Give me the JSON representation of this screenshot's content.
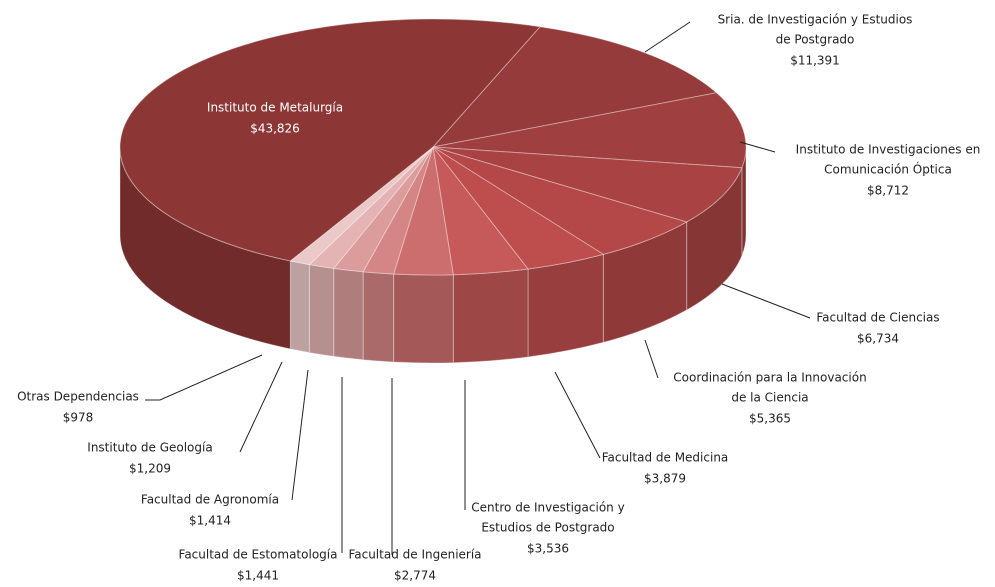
{
  "chart_data": {
    "type": "pie3d",
    "categories": [
      [
        "Sria. de Investigación y Estudios",
        "de Postgrado"
      ],
      [
        "Instituto de Investigaciones en",
        "Comunicación Óptica"
      ],
      [
        "Facultad de Ciencias"
      ],
      [
        "Coordinación para la Innovación",
        "de la Ciencia"
      ],
      [
        "Facultad de Medicina"
      ],
      [
        "Centro de Investigación y",
        "Estudios de Postgrado"
      ],
      [
        "Facultad de Ingeniería"
      ],
      [
        "Facultad de Estomatología"
      ],
      [
        "Facultad de Agronomía"
      ],
      [
        "Instituto de Geología"
      ],
      [
        "Otras Dependencias"
      ],
      [
        "Instituto de Metalurgía"
      ]
    ],
    "values": [
      11391,
      8712,
      6734,
      5365,
      3879,
      3536,
      2774,
      1441,
      1414,
      1209,
      978,
      43826
    ],
    "value_labels": [
      "$11,391",
      "$8,712",
      "$6,734",
      "$5,365",
      "$3,879",
      "$3,536",
      "$2,774",
      "$1,441",
      "$1,414",
      "$1,209",
      "$978",
      "$43,826"
    ],
    "colors": [
      "#963b3b",
      "#9f3f3f",
      "#a94343",
      "#b44747",
      "#be4d4d",
      "#c65959",
      "#cd6e6e",
      "#d48585",
      "#dc9c9c",
      "#e4b3b3",
      "#ecc9c9",
      "#8d3636"
    ]
  }
}
